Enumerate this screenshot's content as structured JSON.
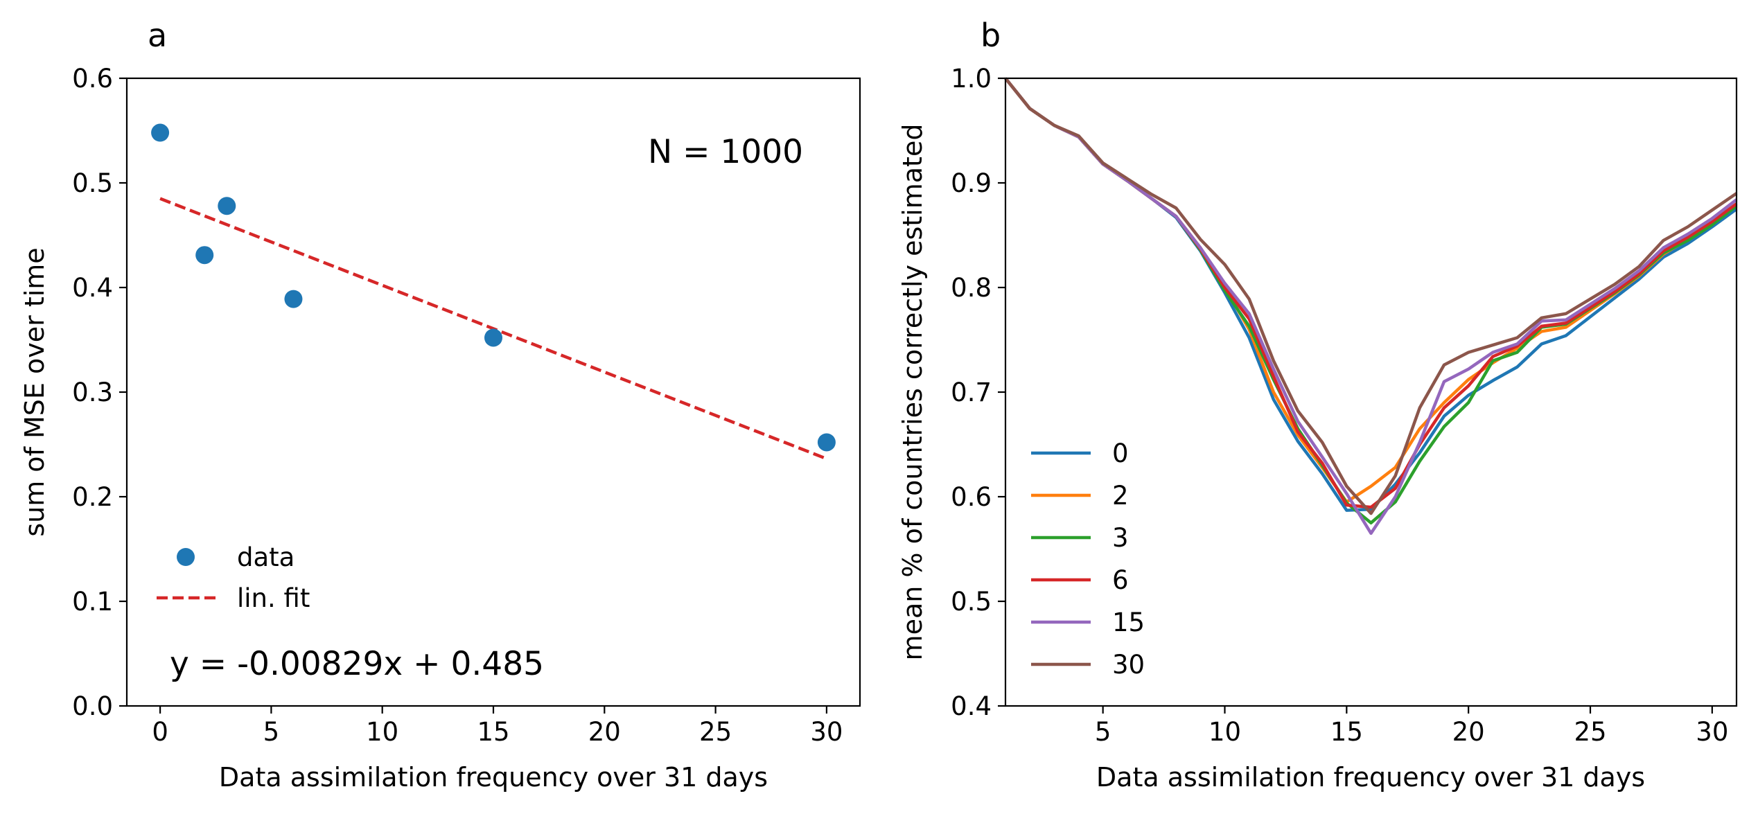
{
  "chart_data": [
    {
      "panel": "a",
      "type": "scatter",
      "xlabel": "Data assimilation frequency over 31 days",
      "ylabel": "sum of MSE over time",
      "xlim": [
        -1.5,
        31.5
      ],
      "ylim": [
        0.0,
        0.6
      ],
      "xticks": [
        0,
        5,
        10,
        15,
        20,
        25,
        30
      ],
      "yticks": [
        0.0,
        0.1,
        0.2,
        0.3,
        0.4,
        0.5,
        0.6
      ],
      "xtick_labels": [
        "0",
        "5",
        "10",
        "15",
        "20",
        "25",
        "30"
      ],
      "ytick_labels": [
        "0.0",
        "0.1",
        "0.2",
        "0.3",
        "0.4",
        "0.5",
        "0.6"
      ],
      "series": [
        {
          "name": "data",
          "kind": "scatter",
          "color": "#1f77b4",
          "x": [
            0,
            2,
            3,
            6,
            15,
            30
          ],
          "y": [
            0.548,
            0.431,
            0.478,
            0.389,
            0.352,
            0.252
          ]
        },
        {
          "name": "lin. fit",
          "kind": "line",
          "style": "dashed",
          "color": "#d62728",
          "slope": -0.00829,
          "intercept": 0.485,
          "x": [
            0,
            30
          ]
        }
      ],
      "legend": {
        "position": "lower-left",
        "entries": [
          "data",
          "lin. fit"
        ]
      },
      "annotations": {
        "n_text": "N = 1000",
        "equation": "y = -0.00829x + 0.485"
      }
    },
    {
      "panel": "b",
      "type": "line",
      "xlabel": "Data assimilation frequency over 31 days",
      "ylabel": "mean % of countries correctly estimated",
      "xlim": [
        1,
        31
      ],
      "ylim": [
        0.4,
        1.0
      ],
      "xticks": [
        5,
        10,
        15,
        20,
        25,
        30
      ],
      "yticks": [
        0.4,
        0.5,
        0.6,
        0.7,
        0.8,
        0.9,
        1.0
      ],
      "xtick_labels": [
        "5",
        "10",
        "15",
        "20",
        "25",
        "30"
      ],
      "ytick_labels": [
        "0.4",
        "0.5",
        "0.6",
        "0.7",
        "0.8",
        "0.9",
        "1.0"
      ],
      "x": [
        1,
        2,
        3,
        4,
        5,
        6,
        7,
        8,
        9,
        10,
        11,
        12,
        13,
        14,
        15,
        16,
        17,
        18,
        19,
        20,
        21,
        22,
        23,
        24,
        25,
        26,
        27,
        28,
        29,
        30,
        31
      ],
      "series": [
        {
          "name": "0",
          "color": "#1f77b4",
          "values": [
            1.0,
            0.971,
            0.955,
            0.944,
            0.918,
            0.902,
            0.885,
            0.867,
            0.835,
            0.795,
            0.752,
            0.693,
            0.653,
            0.622,
            0.587,
            0.588,
            0.612,
            0.642,
            0.677,
            0.697,
            0.711,
            0.724,
            0.746,
            0.754,
            0.772,
            0.79,
            0.808,
            0.829,
            0.842,
            0.858,
            0.875
          ]
        },
        {
          "name": "2",
          "color": "#ff7f0e",
          "values": [
            1.0,
            0.971,
            0.955,
            0.944,
            0.918,
            0.902,
            0.885,
            0.868,
            0.838,
            0.8,
            0.76,
            0.7,
            0.659,
            0.628,
            0.595,
            0.61,
            0.628,
            0.665,
            0.69,
            0.712,
            0.728,
            0.742,
            0.758,
            0.762,
            0.778,
            0.794,
            0.811,
            0.832,
            0.846,
            0.861,
            0.88
          ]
        },
        {
          "name": "3",
          "color": "#2ca02c",
          "values": [
            1.0,
            0.971,
            0.955,
            0.944,
            0.918,
            0.902,
            0.885,
            0.868,
            0.836,
            0.797,
            0.763,
            0.712,
            0.665,
            0.63,
            0.594,
            0.575,
            0.595,
            0.634,
            0.667,
            0.69,
            0.73,
            0.738,
            0.762,
            0.765,
            0.78,
            0.795,
            0.812,
            0.833,
            0.845,
            0.86,
            0.878
          ]
        },
        {
          "name": "6",
          "color": "#d62728",
          "values": [
            1.0,
            0.971,
            0.955,
            0.944,
            0.918,
            0.902,
            0.885,
            0.868,
            0.837,
            0.8,
            0.77,
            0.715,
            0.662,
            0.632,
            0.592,
            0.59,
            0.608,
            0.65,
            0.685,
            0.706,
            0.734,
            0.744,
            0.763,
            0.766,
            0.781,
            0.796,
            0.813,
            0.835,
            0.848,
            0.863,
            0.88
          ]
        },
        {
          "name": "15",
          "color": "#9467bd",
          "values": [
            1.0,
            0.971,
            0.955,
            0.944,
            0.918,
            0.902,
            0.885,
            0.868,
            0.838,
            0.804,
            0.775,
            0.722,
            0.672,
            0.638,
            0.603,
            0.565,
            0.6,
            0.652,
            0.71,
            0.722,
            0.738,
            0.746,
            0.768,
            0.769,
            0.784,
            0.799,
            0.816,
            0.838,
            0.851,
            0.866,
            0.884
          ]
        },
        {
          "name": "30",
          "color": "#8c564b",
          "values": [
            1.0,
            0.971,
            0.955,
            0.945,
            0.919,
            0.904,
            0.889,
            0.876,
            0.846,
            0.822,
            0.789,
            0.73,
            0.682,
            0.652,
            0.61,
            0.584,
            0.62,
            0.685,
            0.726,
            0.738,
            0.745,
            0.752,
            0.771,
            0.775,
            0.789,
            0.803,
            0.82,
            0.845,
            0.858,
            0.874,
            0.89
          ]
        }
      ],
      "legend": {
        "position": "lower-left",
        "entries": [
          "0",
          "2",
          "3",
          "6",
          "15",
          "30"
        ]
      }
    }
  ]
}
